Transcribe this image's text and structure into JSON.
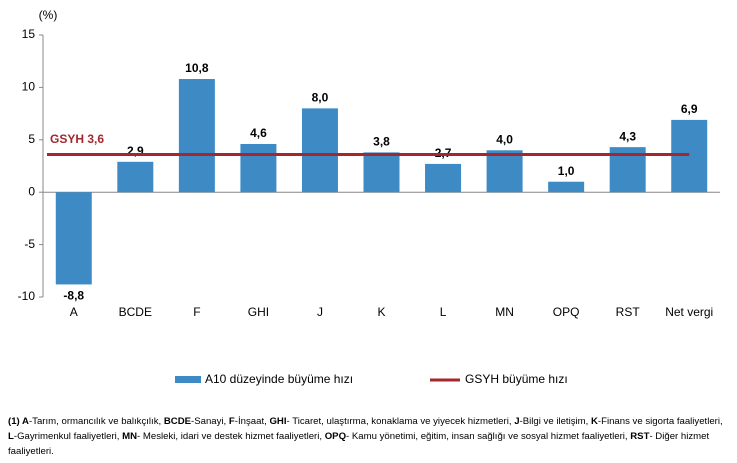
{
  "chart_data": {
    "type": "bar",
    "y_label": "(%)",
    "categories": [
      "A",
      "BCDE",
      "F",
      "GHI",
      "J",
      "K",
      "L",
      "MN",
      "OPQ",
      "RST",
      "Net vergi"
    ],
    "series": [
      {
        "name": "A10 düzeyinde büyüme hızı",
        "color": "#3e8ac4",
        "values": [
          -8.8,
          2.9,
          10.8,
          4.6,
          8.0,
          3.8,
          2.7,
          4.0,
          1.0,
          4.3,
          6.9
        ],
        "value_labels": [
          "-8,8",
          "2,9",
          "10,8",
          "4,6",
          "8,0",
          "3,8",
          "2,7",
          "4,0",
          "1,0",
          "4,3",
          "6,9"
        ]
      }
    ],
    "reference_line": {
      "name": "GSYH büyüme hızı",
      "value": 3.6,
      "label": "GSYH 3,6",
      "color": "#a3272c"
    },
    "ylim": [
      -10,
      15
    ],
    "yticks": [
      -10,
      -5,
      0,
      5,
      10,
      15
    ],
    "grid": false,
    "legend": "bottom",
    "footnote": [
      {
        "text": "(1) A",
        "bold": true
      },
      {
        "text": "-Tarım, ormancılık ve balıkçılık, ",
        "bold": false
      },
      {
        "text": "BCDE",
        "bold": true
      },
      {
        "text": "-Sanayi, ",
        "bold": false
      },
      {
        "text": "F",
        "bold": true
      },
      {
        "text": "-İnşaat, ",
        "bold": false
      },
      {
        "text": "GHI",
        "bold": true
      },
      {
        "text": "- Ticaret, ulaştırma, konaklama ve yiyecek hizmetleri, ",
        "bold": false
      },
      {
        "text": "J",
        "bold": true
      },
      {
        "text": "-Bilgi ve iletişim, ",
        "bold": false
      },
      {
        "text": "K",
        "bold": true
      },
      {
        "text": "-Finans ve sigorta faaliyetleri, ",
        "bold": false
      },
      {
        "text": "L",
        "bold": true
      },
      {
        "text": "-Gayrimenkul faaliyetleri, ",
        "bold": false
      },
      {
        "text": "MN",
        "bold": true
      },
      {
        "text": "- Mesleki, idari ve destek hizmet faaliyetleri, ",
        "bold": false
      },
      {
        "text": "OPQ",
        "bold": true
      },
      {
        "text": "- Kamu yönetimi, eğitim, insan sağlığı ve sosyal hizmet faaliyetleri, ",
        "bold": false
      },
      {
        "text": "RST",
        "bold": true
      },
      {
        "text": "- Diğer hizmet faaliyetleri.",
        "bold": false
      }
    ]
  }
}
